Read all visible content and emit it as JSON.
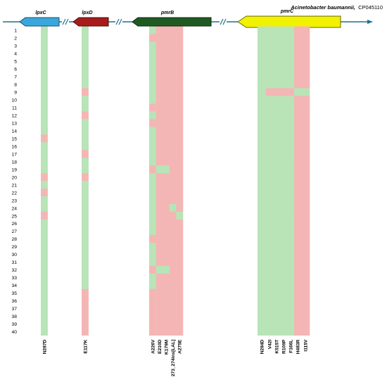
{
  "organism": {
    "species": "Acinetobacter baumannii,",
    "strain": "CP045110"
  },
  "genes": [
    "lpxC",
    "lpxD",
    "pmrB",
    "pmrC"
  ],
  "colors": {
    "susceptible_green": "#b8e4b7",
    "mutation_red": "#f4b6b4",
    "lpxC_arrow": "#3aa7dc",
    "lpxD_arrow": "#a81c1c",
    "pmrB_arrow": "#1f5a22",
    "pmrC_arrow": "#f2f200",
    "backbone": "#1f6f8f"
  },
  "rows": [
    "1",
    "2",
    "3",
    "4",
    "5",
    "6",
    "7",
    "8",
    "9",
    "10",
    "11",
    "12",
    "13",
    "14",
    "15",
    "16",
    "17",
    "18",
    "19",
    "20",
    "21",
    "22",
    "23",
    "24",
    "25",
    "26",
    "27",
    "28",
    "29",
    "30",
    "31",
    "32",
    "33",
    "34",
    "35",
    "36",
    "37",
    "38",
    "39",
    "40"
  ],
  "mutations": {
    "lpxC": [
      "N287D"
    ],
    "lpxD": [
      "E117K"
    ],
    "pmrB": [
      "A226V",
      "E210D",
      "K179M",
      "273_274ins[LAL]",
      "A275E"
    ],
    "pmrC": [
      "N284D",
      "V42I",
      "K515T",
      "R109P",
      "F166L",
      "H483R",
      "I115V"
    ]
  },
  "matrix": {
    "lpxC": {
      "N287D": "GGGGGGGGGGGGGGRGGGGRGRGGRGGGGGGGGGGGGGGG"
    },
    "lpxD": {
      "E117K": "GGGGGGGGRGGRGGGGRGGRGGGGGGGGGGGGGGRRRRRR"
    },
    "pmrB": {
      "A226V": "GRGGGGGGGGRGRGGGGGRGGGGGGGGRGGGRGGRRRRRR",
      "E210D": "RRRRRRRRRRRRRRRRRRGRRRRRRRRRRRRGRRRRRRRR",
      "K179M": "RRRRRRRRRRRRRRRRRRGRRRRRRRRRRRRGRRRRRRRR",
      "273_274ins[LAL]": "RRRRRRRRRRRRRRRRRRRRRRRGRRRRRRRRRRRRRRRR",
      "A275E": "RRRRRRRRRRRRRRRRRRRRRRRRGRRRRRRRRRRRRRRR"
    },
    "pmrC": {
      "N284D": "GGGGGGGGGGGGGGGGGGGGGGGGGGGGGGGGGGGGGGGG",
      "V42I": "GGGGGGGGRGGGGGGGGGGGGGGGGGGGGGGGGGGGGGGG",
      "K515T": "GGGGGGGGRGGGGGGGGGGGGGGGGGGGGGGGGGGGGGGG",
      "R109P": "GGGGGGGGRGGGGGGGGGGGGGGGGGGGGGGGGGGGGGGG",
      "F166L": "GGGGGGGGRGGGGGGGGGGGGGGGGGGGGGGGGGGGGGGG",
      "H483R": "RRRRRRRRGRRRRRRRRRRRRRRRRRRRRRRRRRRRRRRR",
      "I115V": "RRRRRRRRGRRRRRRRRRRRRRRRRRRRRRRRRRRRRRRR"
    }
  }
}
